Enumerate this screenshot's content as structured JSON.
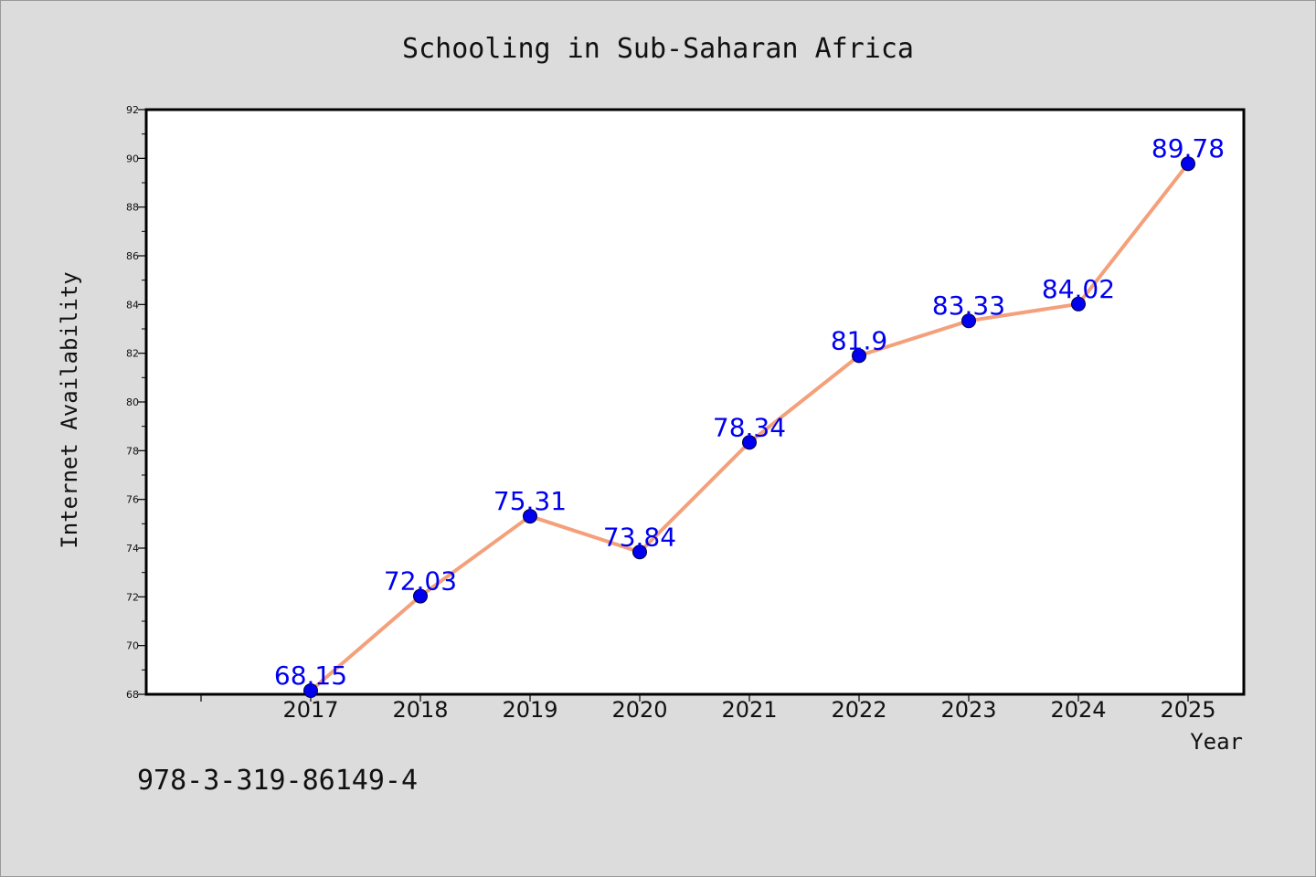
{
  "chart_data": {
    "type": "line",
    "title": "Schooling in Sub-Saharan Africa",
    "xlabel": "Year",
    "ylabel": "Internet Availability",
    "categories": [
      "2017",
      "2018",
      "2019",
      "2020",
      "2021",
      "2022",
      "2023",
      "2024",
      "2025"
    ],
    "series": [
      {
        "values": [
          68.15,
          72.03,
          75.31,
          73.84,
          78.34,
          81.9,
          83.33,
          84.02,
          89.78
        ],
        "labels": [
          "68.15",
          "72.03",
          "75.31",
          "73.84",
          "78.34",
          "81.9",
          "83.33",
          "84.02",
          "89.78"
        ],
        "line_color": "#f4a07a",
        "marker_color": "#0000ee",
        "label_color": "#0000ee"
      }
    ],
    "ylim": [
      68,
      92
    ],
    "y_ticks": [
      "68",
      "70",
      "72",
      "74",
      "76",
      "78",
      "80",
      "82",
      "84",
      "86",
      "88",
      "90",
      "92"
    ],
    "grid": false,
    "legend": "none"
  },
  "annotation": "978-3-319-86149-4"
}
